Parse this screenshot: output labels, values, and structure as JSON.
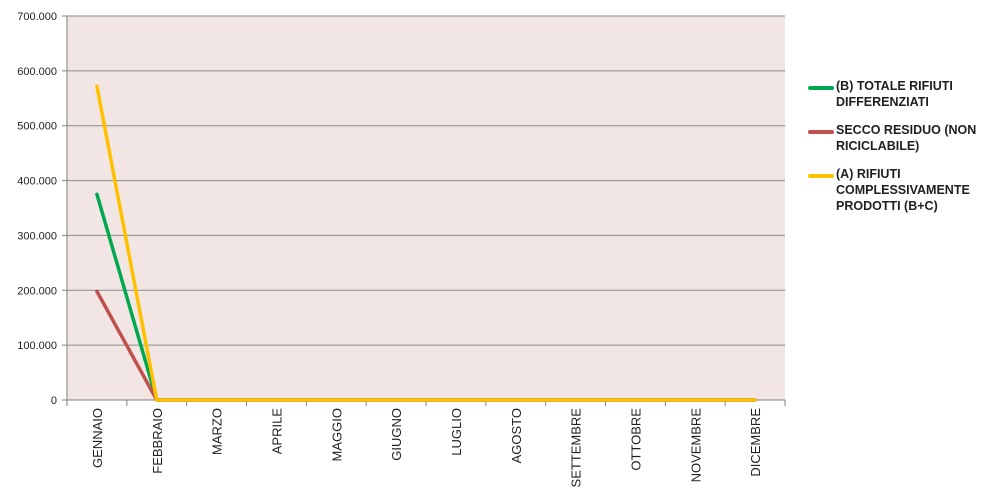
{
  "chart_data": {
    "type": "line",
    "categories": [
      "GENNAIO",
      "FEBBRAIO",
      "MARZO",
      "APRILE",
      "MAGGIO",
      "GIUGNO",
      "LUGLIO",
      "AGOSTO",
      "SETTEMBRE",
      "OTTOBRE",
      "NOVEMBRE",
      "DICEMBRE"
    ],
    "ylim": [
      0,
      700000
    ],
    "yticks": [
      0,
      100000,
      200000,
      300000,
      400000,
      500000,
      600000,
      700000
    ],
    "ytick_labels": [
      "0",
      "100.000",
      "200.000",
      "300.000",
      "400.000",
      "500.000",
      "600.000",
      "700.000"
    ],
    "grid": true,
    "legend_position": "right",
    "series": [
      {
        "name": "(B) TOTALE RIFIUTI DIFFERENZIATI",
        "color": "#00a84f",
        "values": [
          375000,
          0,
          0,
          0,
          0,
          0,
          0,
          0,
          0,
          0,
          0,
          0
        ]
      },
      {
        "name": "SECCO RESIDUO (NON RICICLABILE)",
        "color": "#c0504d",
        "values": [
          198000,
          0,
          0,
          0,
          0,
          0,
          0,
          0,
          0,
          0,
          0,
          0
        ]
      },
      {
        "name": "(A) RIFIUTI COMPLESSIVAMENTE PRODOTTI (B+C)",
        "color": "#ffc000",
        "values": [
          572000,
          0,
          0,
          0,
          0,
          0,
          0,
          0,
          0,
          0,
          0,
          0
        ]
      }
    ],
    "colors": {
      "plot_background": "#f2e6e4",
      "gridline": "#8c8c8c",
      "axis": "#7f7f7f"
    }
  }
}
